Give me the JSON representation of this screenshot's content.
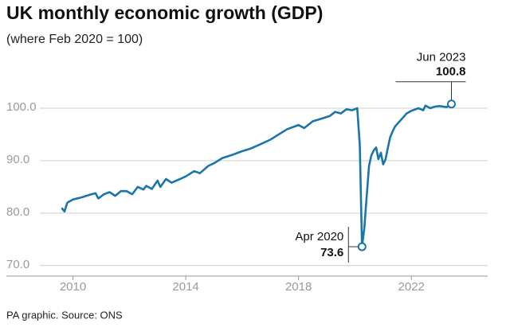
{
  "chart_data": {
    "type": "line",
    "title": "UK monthly economic growth (GDP)",
    "subtitle": "(where Feb 2020 = 100)",
    "source": "PA graphic. Source: ONS",
    "xlim": [
      2009.25,
      2024.0
    ],
    "xticks": [
      2010,
      2014,
      2018,
      2022
    ],
    "ylim": [
      68,
      106
    ],
    "yticks": [
      {
        "value": 70,
        "label": "70.0"
      },
      {
        "value": 80,
        "label": "80.0"
      },
      {
        "value": 90,
        "label": "90.0"
      },
      {
        "value": 100,
        "label": "100.0"
      }
    ],
    "grid": true,
    "x": [
      2009.6,
      2009.7,
      2009.8,
      2010.0,
      2010.3,
      2010.6,
      2010.8,
      2010.9,
      2011.1,
      2011.3,
      2011.5,
      2011.7,
      2011.9,
      2012.1,
      2012.3,
      2012.5,
      2012.6,
      2012.8,
      2013.0,
      2013.1,
      2013.3,
      2013.5,
      2013.8,
      2014.0,
      2014.3,
      2014.5,
      2014.8,
      2015.0,
      2015.3,
      2015.6,
      2016.0,
      2016.3,
      2016.6,
      2017.0,
      2017.3,
      2017.6,
      2018.0,
      2018.2,
      2018.5,
      2018.8,
      2019.1,
      2019.3,
      2019.5,
      2019.7,
      2019.9,
      2020.08,
      2020.17,
      2020.25,
      2020.33,
      2020.42,
      2020.5,
      2020.58,
      2020.67,
      2020.75,
      2020.83,
      2020.92,
      2021.0,
      2021.08,
      2021.17,
      2021.25,
      2021.33,
      2021.42,
      2021.5,
      2021.67,
      2021.83,
      2022.0,
      2022.25,
      2022.42,
      2022.5,
      2022.67,
      2022.83,
      2023.0,
      2023.25,
      2023.42
    ],
    "series": [
      {
        "color": "#1b75a8",
        "values": [
          81,
          80.3,
          82,
          82.6,
          83,
          83.5,
          83.8,
          82.8,
          83.6,
          84,
          83.3,
          84.2,
          84.2,
          83.6,
          85,
          84.5,
          85.2,
          84.6,
          86.2,
          85.0,
          86.5,
          85.8,
          86.5,
          87.0,
          88.0,
          87.6,
          89.0,
          89.5,
          90.5,
          91.0,
          91.8,
          92.3,
          93.0,
          94.0,
          95.0,
          96.0,
          96.8,
          96.2,
          97.5,
          98.0,
          98.5,
          99.3,
          99.0,
          99.8,
          99.6,
          100,
          93.0,
          73.6,
          77,
          83.5,
          89,
          91,
          92,
          92.5,
          90.3,
          91.5,
          89.3,
          90.2,
          92.5,
          94.5,
          95.5,
          96.5,
          97.0,
          98.0,
          99.0,
          99.5,
          100,
          99.6,
          100.5,
          100.0,
          100.3,
          100.4,
          100.2,
          100.8
        ]
      }
    ],
    "annotations": [
      {
        "label": "Apr 2020",
        "value": 73.6,
        "index": 47
      },
      {
        "label": "Jun 2023",
        "value": 100.8,
        "index": 73
      }
    ]
  }
}
